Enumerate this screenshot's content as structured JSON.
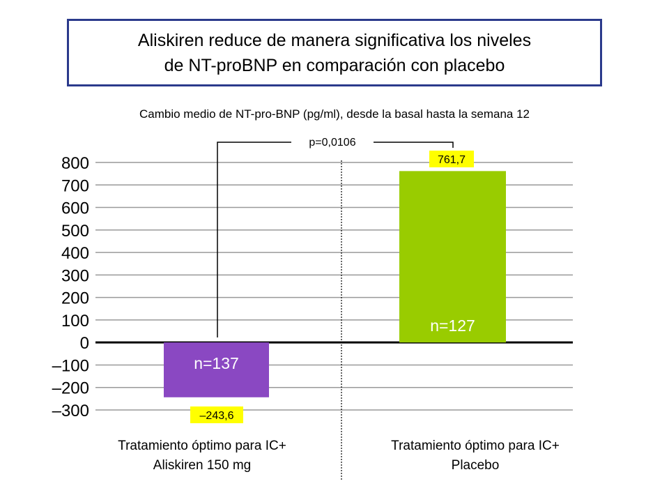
{
  "title_line1": "Aliskiren reduce de manera significativa los niveles",
  "title_line2": "de NT-proBNP en comparación con placebo",
  "subtitle": "Cambio medio de NT-pro-BNP (pg/ml), desde la basal hasta la semana 12",
  "p_value": "p=0,0106",
  "colors": {
    "bar1": "#8a48c2",
    "bar2": "#99cc00",
    "label_bg": "#ffff00",
    "frame": "#2b3a8c"
  },
  "chart_data": {
    "type": "bar",
    "title": "Aliskiren reduce de manera significativa los niveles de NT-proBNP en comparación con placebo",
    "ylabel": "Cambio medio de NT-pro-BNP (pg/ml), desde la basal hasta la semana 12",
    "ylim": [
      -300,
      800
    ],
    "yticks": [
      800,
      700,
      600,
      500,
      400,
      300,
      200,
      100,
      0,
      -100,
      -200,
      -300
    ],
    "ytick_labels": [
      "800",
      "700",
      "600",
      "500",
      "400",
      "300",
      "200",
      "100",
      "0",
      "–100",
      "–200",
      "–300"
    ],
    "categories": [
      {
        "line1": "Tratamiento óptimo para IC+",
        "line2": "Aliskiren 150 mg"
      },
      {
        "line1": "Tratamiento óptimo para IC+",
        "line2": "Placebo"
      }
    ],
    "values": [
      -243.6,
      761.7
    ],
    "value_labels": [
      "–243,6",
      "761,7"
    ],
    "n_labels": [
      "n=137",
      "n=127"
    ]
  }
}
